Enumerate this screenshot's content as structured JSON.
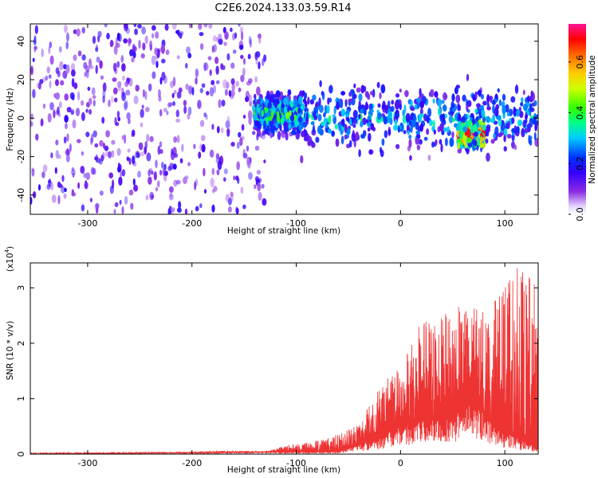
{
  "title": "C2E6.2024.133.03.59.R14",
  "chart_data": [
    {
      "type": "heatmap",
      "xlabel": "Height of straight line (km)",
      "ylabel": "Frequency (Hz)",
      "xlim": [
        -355,
        132
      ],
      "ylim": [
        -50,
        49
      ],
      "xticks": [
        -300,
        -200,
        -100,
        0,
        100
      ],
      "yticks": [
        -40,
        -20,
        0,
        20,
        40
      ],
      "colorbar": {
        "label": "Normalized spectral amplitude",
        "range": [
          0,
          0.75
        ],
        "ticks": [
          0.0,
          0.2,
          0.4,
          0.6
        ],
        "tick_labels": [
          "0.0",
          "0.2",
          "0.4",
          "0.6"
        ]
      },
      "description_regions": [
        {
          "x_from": -355,
          "x_to": -130,
          "freq_spread": 49,
          "level": 0.12
        },
        {
          "x_from": -140,
          "x_to": -95,
          "freq_center": 2,
          "freq_spread": 8,
          "level": 0.25
        },
        {
          "x_from": -95,
          "x_to": 132,
          "freq_center": 0,
          "freq_spread": 15,
          "level": 0.2
        },
        {
          "x_from": 55,
          "x_to": 80,
          "freq_center": -8,
          "freq_spread": 6,
          "level": 0.45
        }
      ]
    },
    {
      "type": "area",
      "xlabel": "Height of straight line (km)",
      "ylabel": "SNR (10 * v/v)",
      "multiplier_label": "(x10",
      "multiplier_exp": "4",
      "multiplier_close": ")",
      "xlim": [
        -355,
        132
      ],
      "ylim": [
        0,
        3.45
      ],
      "xticks": [
        -300,
        -200,
        -100,
        0,
        100
      ],
      "yticks": [
        0,
        1,
        2,
        3
      ],
      "series": [
        {
          "color": "#ee3333",
          "envelope": [
            {
              "x": -355,
              "y": 0.03
            },
            {
              "x": -200,
              "y": 0.04
            },
            {
              "x": -180,
              "y": 0.06
            },
            {
              "x": -130,
              "y": 0.05
            },
            {
              "x": -100,
              "y": 0.2
            },
            {
              "x": -80,
              "y": 0.25
            },
            {
              "x": -60,
              "y": 0.35
            },
            {
              "x": -40,
              "y": 0.6
            },
            {
              "x": -20,
              "y": 1.2
            },
            {
              "x": 0,
              "y": 1.7
            },
            {
              "x": 20,
              "y": 2.4
            },
            {
              "x": 40,
              "y": 2.5
            },
            {
              "x": 60,
              "y": 2.7
            },
            {
              "x": 80,
              "y": 2.6
            },
            {
              "x": 100,
              "y": 3.0
            },
            {
              "x": 110,
              "y": 3.4
            },
            {
              "x": 132,
              "y": 3.1
            }
          ],
          "base": [
            {
              "x": -355,
              "y": 0
            },
            {
              "x": -60,
              "y": 0.05
            },
            {
              "x": -20,
              "y": 0.3
            },
            {
              "x": 0,
              "y": 0.5
            },
            {
              "x": 20,
              "y": 0.6
            },
            {
              "x": 50,
              "y": 0.7
            },
            {
              "x": 70,
              "y": 0.95
            },
            {
              "x": 90,
              "y": 0.5
            },
            {
              "x": 132,
              "y": 0.1
            }
          ]
        }
      ]
    }
  ]
}
